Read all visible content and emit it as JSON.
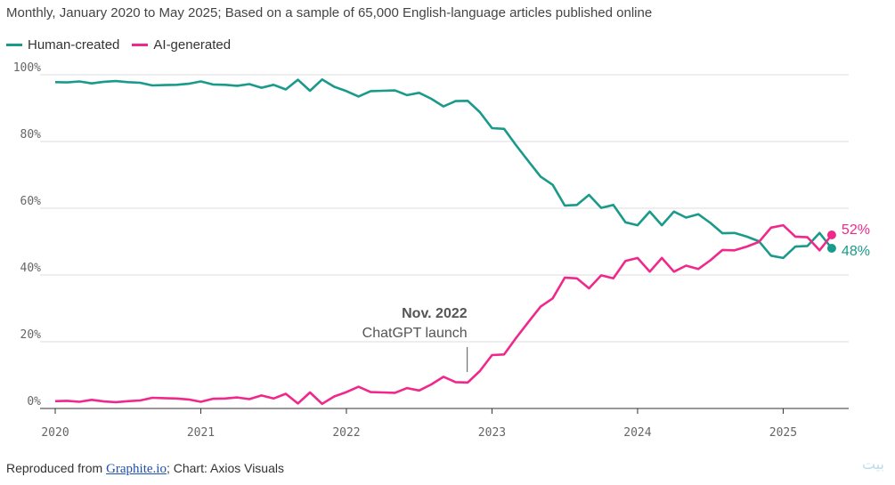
{
  "subtitle": "Monthly, January 2020 to May 2025; Based on a sample of 65,000 English-language articles published online",
  "legend": [
    {
      "label": "Human-created",
      "color": "#1a9a8a"
    },
    {
      "label": "AI-generated",
      "color": "#f0288c"
    }
  ],
  "annotation": {
    "title": "Nov. 2022",
    "text": "ChatGPT launch",
    "x": 2022.83
  },
  "end_labels": {
    "ai": "52%",
    "human": "48%"
  },
  "footer": {
    "prefix": "Reproduced from ",
    "link": "Graphite.io",
    "suffix": "; Chart: Axios Visuals"
  },
  "watermark": "بیت",
  "chart_data": {
    "type": "line",
    "x_start": "2020-01",
    "xlim": [
      2020,
      2025.45
    ],
    "ylim": [
      0,
      100
    ],
    "y_ticks": [
      "0%",
      "20%",
      "40%",
      "60%",
      "80%",
      "100%"
    ],
    "x_ticks": [
      "2020",
      "2021",
      "2022",
      "2023",
      "2024",
      "2025"
    ],
    "grid": true,
    "series": [
      {
        "name": "Human-created",
        "color": "#1a9a8a",
        "values": [
          97.8,
          97.7,
          98,
          97.4,
          97.9,
          98.1,
          97.8,
          97.6,
          96.8,
          96.9,
          97,
          97.3,
          98,
          97.1,
          97,
          96.7,
          97.2,
          96.1,
          97,
          95.6,
          98.5,
          95.2,
          98.6,
          96.4,
          95.1,
          93.5,
          95.1,
          95.2,
          95.3,
          93.9,
          94.6,
          92.8,
          90.5,
          92.1,
          92.2,
          88.8,
          84,
          83.8,
          78.8,
          74.1,
          69.5,
          67,
          60.8,
          61,
          64,
          60.1,
          61,
          55.8,
          54.9,
          59,
          54.9,
          59,
          57.2,
          58.2,
          55.6,
          52.5,
          52.6,
          51.5,
          50.1,
          45.8,
          45.1,
          48.5,
          48.7,
          52.6,
          48
        ]
      },
      {
        "name": "AI-generated",
        "color": "#f0288c",
        "values": [
          2.2,
          2.3,
          2,
          2.6,
          2.1,
          1.9,
          2.2,
          2.4,
          3.2,
          3.1,
          3,
          2.7,
          2,
          2.9,
          3,
          3.3,
          2.8,
          3.9,
          3,
          4.4,
          1.5,
          4.8,
          1.4,
          3.6,
          4.9,
          6.5,
          4.9,
          4.8,
          4.7,
          6.1,
          5.4,
          7.2,
          9.5,
          7.9,
          7.8,
          11.2,
          16,
          16.2,
          21.2,
          25.9,
          30.5,
          33,
          39.2,
          39,
          36,
          39.9,
          39,
          44.2,
          45.1,
          41,
          45.1,
          41,
          42.8,
          41.8,
          44.4,
          47.5,
          47.4,
          48.5,
          49.9,
          54.2,
          54.9,
          51.5,
          51.3,
          47.4,
          52
        ]
      }
    ]
  }
}
